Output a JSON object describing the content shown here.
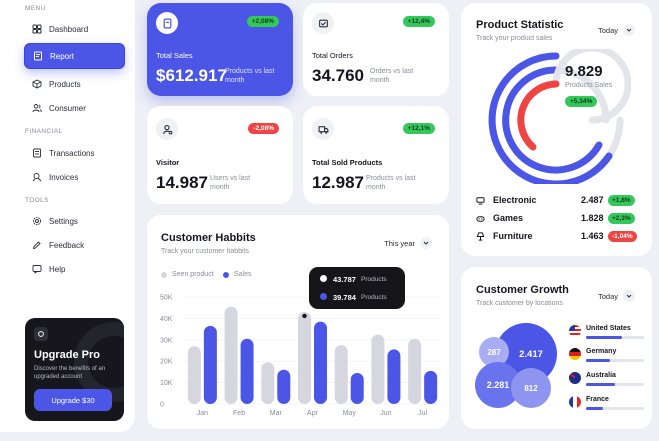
{
  "sidebar": {
    "sections": {
      "menu": "MENU",
      "financial": "FINANCIAL",
      "tools": "TOOLS"
    },
    "items": [
      {
        "label": "Dashboard"
      },
      {
        "label": "Report"
      },
      {
        "label": "Products"
      },
      {
        "label": "Consumer"
      },
      {
        "label": "Transactions"
      },
      {
        "label": "Invoices"
      },
      {
        "label": "Settings"
      },
      {
        "label": "Feedback"
      },
      {
        "label": "Help"
      }
    ],
    "upgrade": {
      "title": "Upgrade Pro",
      "description": "Discover the benefits of an upgraded account",
      "button": "Upgrade $30"
    }
  },
  "stats": {
    "total_sales": {
      "label": "Total Sales",
      "value": "$612.917",
      "sub": "Products vs last month",
      "change": "+2,08%"
    },
    "total_orders": {
      "label": "Total Orders",
      "value": "34.760",
      "sub": "Orders vs last month",
      "change": "+12,4%"
    },
    "visitor": {
      "label": "Visitor",
      "value": "14.987",
      "sub": "Users vs last month",
      "change": "-2,08%"
    },
    "total_sold": {
      "label": "Total Sold Products",
      "value": "12.987",
      "sub": "Products vs last month",
      "change": "+12,1%"
    }
  },
  "product_statistic": {
    "title": "Product Statistic",
    "subtitle": "Track your product sales",
    "period": "Today",
    "total": "9.829",
    "total_label": "Products Sales",
    "total_change": "+5,34%",
    "items": [
      {
        "name": "Electronic",
        "value": "2.487",
        "change": "+1,8%"
      },
      {
        "name": "Games",
        "value": "1.828",
        "change": "+2,3%"
      },
      {
        "name": "Furniture",
        "value": "1.463",
        "change": "-1,04%"
      }
    ]
  },
  "customer_habits": {
    "title": "Customer Habbits",
    "subtitle": "Track your customer habbits",
    "period": "This year",
    "tooltip": {
      "seen": "43.787",
      "sales": "39.784",
      "unit": "Products"
    }
  },
  "customer_growth": {
    "title": "Customer Growth",
    "subtitle": "Track customer by locations",
    "period": "Today",
    "bubbles": {
      "b1": "2.417",
      "b2": "287",
      "b3": "2.281",
      "b4": "812"
    },
    "countries": [
      {
        "name": "United States",
        "fill": 0.62
      },
      {
        "name": "Germany",
        "fill": 0.42
      },
      {
        "name": "Australia",
        "fill": 0.5
      },
      {
        "name": "France",
        "fill": 0.3
      }
    ]
  },
  "chart_data": {
    "type": "bar",
    "title": "Customer Habbits",
    "categories": [
      "Jan",
      "Feb",
      "Mar",
      "Apr",
      "May",
      "Jun",
      "Jul"
    ],
    "series": [
      {
        "name": "Seen product",
        "color": "#d6d7de",
        "values": [
          27000,
          45500,
          19500,
          43000,
          27500,
          32500,
          30500
        ]
      },
      {
        "name": "Sales",
        "color": "#4b55e6",
        "values": [
          36500,
          30500,
          16000,
          38500,
          14500,
          25500,
          15500
        ]
      }
    ],
    "yticks": [
      "0",
      "10K",
      "20K",
      "30K",
      "40K",
      "50K"
    ],
    "ylim": [
      0,
      50000
    ]
  }
}
